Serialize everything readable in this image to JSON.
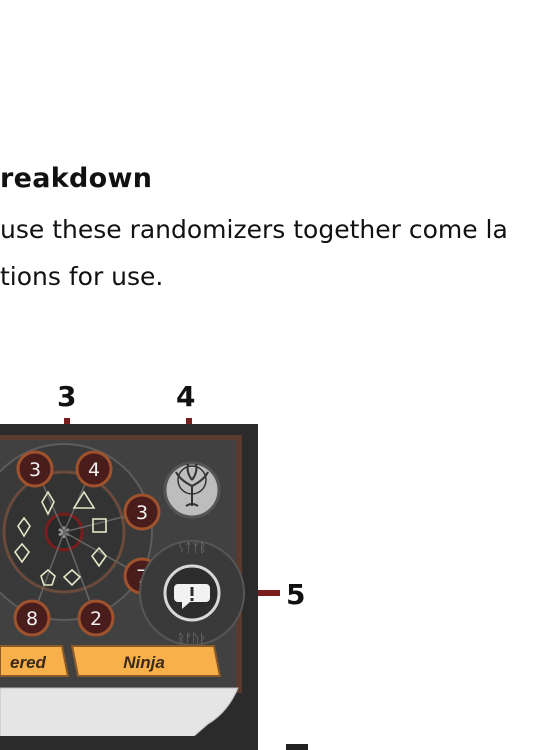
{
  "heading": "reakdown",
  "paragraph": {
    "line1": "use these randomizers together come la",
    "line2": "tions for use."
  },
  "callouts": {
    "c3": "3",
    "c4": "4",
    "c5": "5"
  },
  "card": {
    "numbers": [
      "3",
      "4",
      "3",
      "7",
      "2",
      "8"
    ],
    "labels": {
      "left": "ered",
      "right": "Ninja"
    },
    "symbols": [
      "triangle-symbol",
      "square-symbol",
      "d10-symbol",
      "d8-symbol",
      "d12-symbol",
      "d20-symbol",
      "tree-icon",
      "speech-exclamation-icon"
    ]
  },
  "colors": {
    "card_bg": "#3d3d3d",
    "orange": "#f7b04a",
    "dark_red": "#7a1d1d",
    "frame": "#5a3a2c"
  }
}
